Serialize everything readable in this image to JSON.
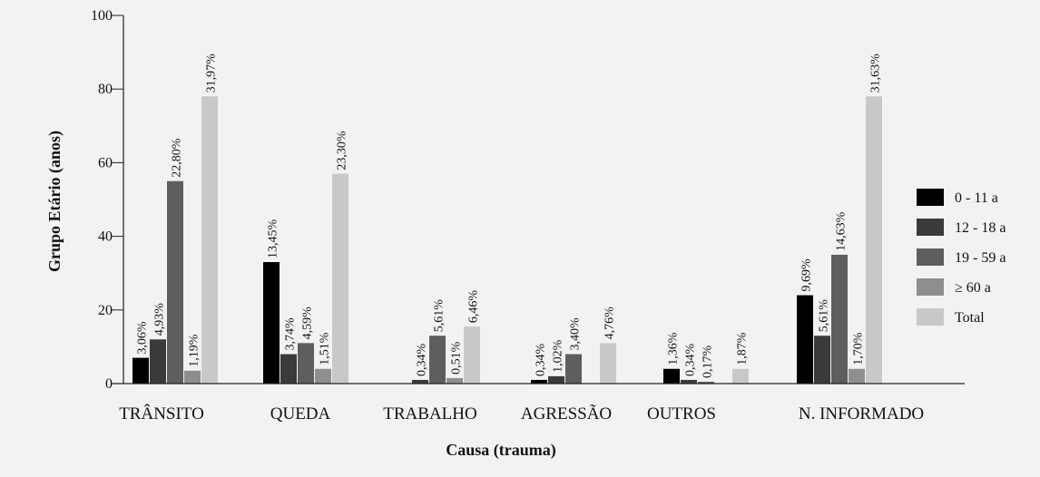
{
  "chart_data": {
    "type": "bar",
    "xlabel": "Causa (trauma)",
    "ylabel": "Grupo Etário (anos)",
    "ylim": [
      0,
      100
    ],
    "yticks": [
      0,
      20,
      40,
      60,
      80,
      100
    ],
    "categories": [
      "TRÂNSITO",
      "QUEDA",
      "TRABALHO",
      "AGRESSÃO",
      "OUTROS",
      "N. INFORMADO"
    ],
    "series": [
      {
        "name": "0 - 11 a",
        "color": "#000000",
        "values": [
          7,
          33,
          null,
          1,
          4,
          24
        ],
        "labels": [
          "3,06%",
          "13,45%",
          "",
          "0,34%",
          "1,36%",
          "9,69%"
        ]
      },
      {
        "name": "12 - 18 a",
        "color": "#3a3a3a",
        "values": [
          12,
          8,
          1,
          2,
          1,
          13
        ],
        "labels": [
          "4,93%",
          "3,74%",
          "0,34%",
          "1,02%",
          "0,34%",
          "5,61%"
        ]
      },
      {
        "name": "19 - 59 a",
        "color": "#5e5e5e",
        "values": [
          55,
          11,
          13,
          8,
          0.5,
          35
        ],
        "labels": [
          "22,80%",
          "4,59%",
          "5,61%",
          "3,40%",
          "0,17%",
          "14,63%"
        ]
      },
      {
        "name": "≥ 60 a",
        "color": "#8e8e8e",
        "values": [
          3.5,
          4,
          1.5,
          null,
          null,
          4
        ],
        "labels": [
          "1,19%",
          "1,51%",
          "0,51%",
          "",
          "",
          "1,70%"
        ]
      },
      {
        "name": "Total",
        "color": "#c8c8c8",
        "values": [
          78,
          57,
          15.5,
          11,
          4,
          78
        ],
        "labels": [
          "31,97%",
          "23,30%",
          "6,46%",
          "4,76%",
          "1,87%",
          "31,63%"
        ]
      }
    ],
    "legend_position": "right",
    "grid": false
  }
}
